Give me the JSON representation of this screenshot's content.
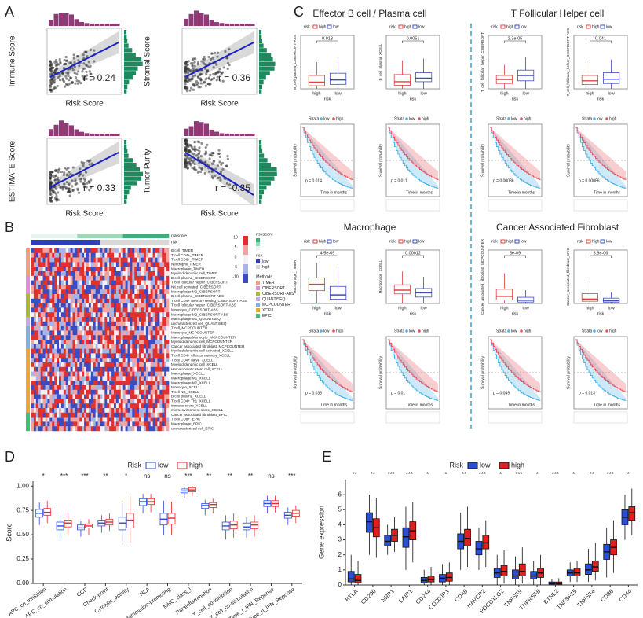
{
  "panel_labels": [
    "A",
    "B",
    "C",
    "D",
    "E"
  ],
  "panel_a": {
    "plots": [
      {
        "y_label": "Immune Score",
        "x_label": "Risk Score",
        "r": "r = 0.24"
      },
      {
        "y_label": "Stromal Score",
        "x_label": "Risk Score",
        "r": "r = 0.36"
      },
      {
        "y_label": "ESTIMATE Score",
        "x_label": "Risk Score",
        "r": "r = 0.33"
      },
      {
        "y_label": "Tumor Purity",
        "x_label": "Risk Score",
        "r": "r = -0.35"
      }
    ]
  },
  "panel_b": {
    "top_rows": [
      "riskscore",
      "risk"
    ],
    "rows": [
      "B cell_TIMER",
      "T cell CD4+_TIMER",
      "T cell CD8+_TIMER",
      "Neutrophil_TIMER",
      "Macrophage_TIMER",
      "Myeloid dendritic cell_TIMER",
      "B cell plasma_CIBERSORT",
      "T cell follicular helper_CIBERSORT",
      "NK cell activated_CIBERSORT",
      "Macrophage M2_CIBERSORT",
      "B cell plasma_CIBERSORT-ABS",
      "T cell CD4+ memory resting_CIBERSORT-ABS",
      "T cell follicular helper_CIBERSORT-ABS",
      "Monocyte_CIBERSORT-ABS",
      "Macrophage M2_CIBERSORT-ABS",
      "Macrophage M1_QUANTISEQ",
      "uncharacterized cell_QUANTISEQ",
      "T cell_MCPCOUNTER",
      "Monocyte_MCPCOUNTER",
      "Macrophage/Monocyte_MCPCOUNTER",
      "Myeloid dendritic cell_MCPCOUNTER",
      "Cancer associated fibroblast_MCPCOUNTER",
      "Myeloid dendritic cell activated_XCELL",
      "T cell CD4+ effector memory_XCELL",
      "T cell CD4+ naive_XCELL",
      "Myeloid dendritic cell_XCELL",
      "Hematopoietic stem cell_XCELL",
      "Macrophage_XCELL",
      "Macrophage M1_XCELL",
      "Macrophage M2_XCELL",
      "Monocyte_XCELL",
      "T cell NK_XCELL",
      "B cell plasma_XCELL",
      "T cell CD4+ Th1_XCELL",
      "immune score_XCELL",
      "microenvironment score_XCELL",
      "Cancer associated fibroblast_EPIC",
      "T cell CD8+_EPIC",
      "Macrophage_EPIC",
      "uncharacterized cell_EPIC"
    ],
    "scale_labels": [
      "10",
      "5",
      "0",
      "-5",
      "-10"
    ],
    "legend": {
      "riskscore_title": "riskscore",
      "risk_title": "risk",
      "risk_items": [
        {
          "name": "low",
          "color": "#2b3fb8"
        },
        {
          "name": "high",
          "color": "#d8d8d8"
        }
      ],
      "methods_title": "Methods",
      "methods": [
        {
          "name": "TIMER",
          "color": "#f2a07b"
        },
        {
          "name": "CIBERSORT",
          "color": "#e58ad6"
        },
        {
          "name": "CIBERSORT-ABS",
          "color": "#a7b83a"
        },
        {
          "name": "QUANTISEQ",
          "color": "#c8a6e8"
        },
        {
          "name": "MCPCOUNTER",
          "color": "#7fb0e6"
        },
        {
          "name": "XCELL",
          "color": "#f0a23a"
        },
        {
          "name": "EPIC",
          "color": "#3fc07a"
        }
      ]
    }
  },
  "panel_c": {
    "legend_title": "risk",
    "series": [
      {
        "name": "high",
        "color": "#e0403f"
      },
      {
        "name": "low",
        "color": "#3b4cc0"
      }
    ],
    "km_legend_title": "Strata",
    "km_series": [
      {
        "name": "low",
        "color": "#4fb3e8"
      },
      {
        "name": "high",
        "color": "#e8505b"
      }
    ],
    "km_y_label": "Survival probability",
    "km_x_label": "Time in months",
    "groups": [
      {
        "title": "Effector B cell / Plasma cell",
        "boxes": [
          {
            "y_label": "B_cell_plasma_CIBERSORT-ABS",
            "p_value": "0.013",
            "ylim": [
              0,
              0.12
            ],
            "values": [
              [
                0,
                0.007,
                0.015,
                0.03,
                0.06
              ],
              [
                0,
                0.01,
                0.02,
                0.035,
                0.065
              ]
            ]
          },
          {
            "y_label": "B_cell_plasma_XCELL",
            "p_value": "0.0051",
            "ylim": [
              0,
              0.15
            ],
            "values": [
              [
                0,
                0.01,
                0.02,
                0.04,
                0.08
              ],
              [
                0,
                0.02,
                0.03,
                0.045,
                0.085
              ]
            ]
          }
        ],
        "km_p": [
          "p = 0.014",
          "p = 0.011"
        ]
      },
      {
        "title": "T Follicular Helper cell",
        "boxes": [
          {
            "y_label": "T_cell_follicular_helper_CIBERSORT",
            "p_value": "2.3e-05",
            "ylim": [
              0,
              0.2
            ],
            "values": [
              [
                0,
                0.02,
                0.035,
                0.05,
                0.09
              ],
              [
                0,
                0.03,
                0.05,
                0.07,
                0.12
              ]
            ]
          },
          {
            "y_label": "T_cell_follicular_helper_CIBERSORT-ABS",
            "p_value": "0.041",
            "ylim": [
              0,
              0.1
            ],
            "values": [
              [
                0,
                0.008,
                0.015,
                0.025,
                0.05
              ],
              [
                0,
                0.01,
                0.018,
                0.03,
                0.055
              ]
            ]
          }
        ],
        "km_p": [
          "p = 0.00036",
          "p = 0.00086"
        ]
      },
      {
        "title": "Macrophage",
        "boxes": [
          {
            "y_label": "Macrophage_TIMER",
            "p_value": "4.5e-09",
            "ylim": [
              0,
              0.25
            ],
            "values": [
              [
                0,
                0.06,
                0.09,
                0.12,
                0.19
              ],
              [
                0,
                0.02,
                0.04,
                0.08,
                0.16
              ]
            ]
          },
          {
            "y_label": "Macrophage_XCELL",
            "p_value": "0.00012",
            "ylim": [
              0,
              0.1
            ],
            "values": [
              [
                0,
                0.018,
                0.025,
                0.035,
                0.06
              ],
              [
                0,
                0.012,
                0.02,
                0.028,
                0.05
              ]
            ]
          }
        ],
        "km_p": [
          "p = 0.033",
          "p = 0.01"
        ]
      },
      {
        "title": "Cancer Associated Fibroblast",
        "boxes": [
          {
            "y_label": "Cancer_associated_fibroblast_MCPCOUNTER",
            "p_value": "5e-09",
            "ylim": [
              0,
              3000
            ],
            "values": [
              [
                0,
                200,
                400,
                800,
                1700
              ],
              [
                0,
                80,
                180,
                350,
                750
              ]
            ]
          },
          {
            "y_label": "Cancer_associated_fibroblast_EPIC",
            "p_value": "3.9e-06",
            "ylim": [
              0,
              0.12
            ],
            "values": [
              [
                0,
                0.005,
                0.01,
                0.022,
                0.05
              ],
              [
                0,
                0.003,
                0.006,
                0.012,
                0.025
              ]
            ]
          }
        ],
        "km_p": [
          "p = 0.049",
          "p = 0.013"
        ]
      }
    ]
  },
  "chart_data": [
    {
      "type": "box",
      "legend_title": "Risk",
      "y_label": "Score",
      "filled": false,
      "categories": [
        "APC_co_inhibition",
        "APC_co_stimulation",
        "CCR",
        "Check-point",
        "Cytolytic_activity",
        "HLA",
        "Inflammation-promoting",
        "MHC_class_I",
        "Parainflammation",
        "T_cell_co-inhibition",
        "T_cell_co-stimulation",
        "Type_I_IFN_Reponse",
        "Type_II_IFN_Reponse"
      ],
      "significance": [
        "*",
        "***",
        "***",
        "**",
        "*",
        "ns",
        "ns",
        "***",
        "**",
        "**",
        "**",
        "ns",
        "***"
      ],
      "ylim": [
        0,
        1.05
      ],
      "yticks": [
        {
          "value": 0,
          "label": "0.00"
        },
        {
          "value": 0.25,
          "label": "0.25"
        },
        {
          "value": 0.5,
          "label": "0.50"
        },
        {
          "value": 0.75,
          "label": "0.75"
        },
        {
          "value": 1,
          "label": "1.00"
        }
      ],
      "series": [
        {
          "name": "low",
          "color": "#2b4bd8",
          "values": [
            [
              0.6,
              0.68,
              0.72,
              0.76,
              0.83
            ],
            [
              0.45,
              0.55,
              0.59,
              0.63,
              0.7
            ],
            [
              0.48,
              0.55,
              0.57,
              0.6,
              0.64
            ],
            [
              0.52,
              0.59,
              0.62,
              0.65,
              0.7
            ],
            [
              0.4,
              0.55,
              0.62,
              0.68,
              0.85
            ],
            [
              0.72,
              0.8,
              0.84,
              0.87,
              0.92
            ],
            [
              0.5,
              0.6,
              0.66,
              0.72,
              0.85
            ],
            [
              0.88,
              0.93,
              0.95,
              0.97,
              0.99
            ],
            [
              0.7,
              0.77,
              0.8,
              0.82,
              0.86
            ],
            [
              0.45,
              0.55,
              0.59,
              0.63,
              0.7
            ],
            [
              0.47,
              0.55,
              0.58,
              0.62,
              0.68
            ],
            [
              0.72,
              0.79,
              0.82,
              0.85,
              0.9
            ],
            [
              0.6,
              0.67,
              0.7,
              0.73,
              0.78
            ]
          ]
        },
        {
          "name": "high",
          "color": "#e8272b",
          "values": [
            [
              0.62,
              0.7,
              0.73,
              0.77,
              0.85
            ],
            [
              0.5,
              0.58,
              0.62,
              0.65,
              0.72
            ],
            [
              0.5,
              0.57,
              0.59,
              0.61,
              0.66
            ],
            [
              0.54,
              0.6,
              0.63,
              0.66,
              0.72
            ],
            [
              0.42,
              0.57,
              0.65,
              0.72,
              0.9
            ],
            [
              0.73,
              0.81,
              0.84,
              0.87,
              0.92
            ],
            [
              0.5,
              0.61,
              0.67,
              0.72,
              0.84
            ],
            [
              0.9,
              0.94,
              0.96,
              0.98,
              1.0
            ],
            [
              0.72,
              0.78,
              0.81,
              0.83,
              0.87
            ],
            [
              0.47,
              0.56,
              0.6,
              0.64,
              0.72
            ],
            [
              0.48,
              0.56,
              0.6,
              0.63,
              0.7
            ],
            [
              0.73,
              0.79,
              0.82,
              0.85,
              0.9
            ],
            [
              0.62,
              0.69,
              0.72,
              0.75,
              0.8
            ]
          ]
        }
      ]
    },
    {
      "type": "box",
      "legend_title": "Risk",
      "y_label": "Gene expression",
      "filled": true,
      "categories": [
        "BTLA",
        "CD200",
        "NRP1",
        "LAIR1",
        "CD244",
        "CD200R1",
        "CD48",
        "HAVCR2",
        "PDCD1LG2",
        "TNFSF9",
        "TNFRSF8",
        "BTNL2",
        "TNFSF15",
        "TNFSF4",
        "CD86",
        "CD44"
      ],
      "significance": [
        "**",
        "**",
        "***",
        "***",
        "*",
        "*",
        "**",
        "***",
        "*",
        "***",
        "*",
        "***",
        "*",
        "**",
        "***",
        "*"
      ],
      "ylim": [
        0,
        7
      ],
      "yticks": [
        0,
        1,
        2,
        3,
        4,
        5,
        6
      ],
      "series": [
        {
          "name": "low",
          "color": "#2a4fd6",
          "values": [
            [
              0,
              0.2,
              0.4,
              0.9,
              2
            ],
            [
              2,
              3.5,
              4.2,
              4.8,
              6
            ],
            [
              2,
              2.6,
              2.9,
              3.3,
              4
            ],
            [
              1,
              2.5,
              3.2,
              3.8,
              5.2
            ],
            [
              0,
              0.15,
              0.3,
              0.5,
              1
            ],
            [
              0,
              0.2,
              0.45,
              0.7,
              1.4
            ],
            [
              1,
              2.4,
              2.9,
              3.4,
              4.8
            ],
            [
              1,
              2,
              2.4,
              2.9,
              3.8
            ],
            [
              0,
              0.5,
              0.8,
              1.1,
              2
            ],
            [
              0,
              0.4,
              0.6,
              1,
              1.9
            ],
            [
              0,
              0.4,
              0.6,
              0.9,
              1.6
            ],
            [
              0,
              0.05,
              0.1,
              0.2,
              0.4
            ],
            [
              0.2,
              0.6,
              0.8,
              1,
              1.5
            ],
            [
              0.2,
              0.7,
              1,
              1.4,
              2.4
            ],
            [
              0.5,
              1.7,
              2.2,
              2.7,
              3.8
            ],
            [
              3,
              4,
              4.5,
              5,
              6
            ]
          ]
        },
        {
          "name": "high",
          "color": "#e02020",
          "values": [
            [
              0,
              0.15,
              0.3,
              0.7,
              1.6
            ],
            [
              1.8,
              3.2,
              3.8,
              4.4,
              5.8
            ],
            [
              2.2,
              2.9,
              3.3,
              3.7,
              4.5
            ],
            [
              1.5,
              3,
              3.6,
              4.2,
              5.5
            ],
            [
              0,
              0.2,
              0.35,
              0.6,
              1.2
            ],
            [
              0,
              0.25,
              0.5,
              0.8,
              1.5
            ],
            [
              1.2,
              2.6,
              3.1,
              3.7,
              5.2
            ],
            [
              1.2,
              2.4,
              2.8,
              3.3,
              4.3
            ],
            [
              0.1,
              0.6,
              0.9,
              1.3,
              2.3
            ],
            [
              0.1,
              0.6,
              0.9,
              1.4,
              2.5
            ],
            [
              0,
              0.5,
              0.8,
              1.1,
              2
            ],
            [
              0,
              0.05,
              0.1,
              0.2,
              0.45
            ],
            [
              0.2,
              0.6,
              0.8,
              1.1,
              1.6
            ],
            [
              0.3,
              0.9,
              1.2,
              1.6,
              2.8
            ],
            [
              0.8,
              2,
              2.5,
              3,
              4.3
            ],
            [
              3.3,
              4.3,
              4.8,
              5.2,
              6.4
            ]
          ]
        }
      ]
    }
  ]
}
